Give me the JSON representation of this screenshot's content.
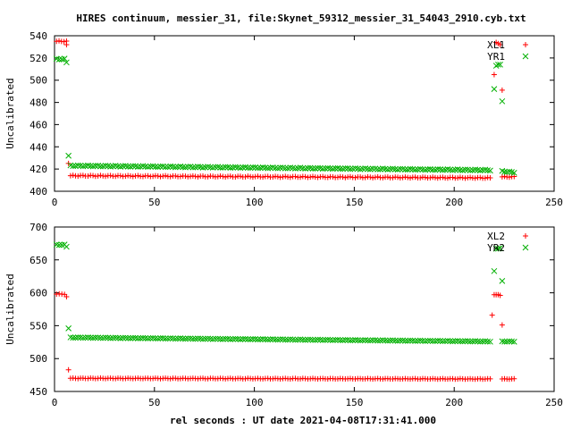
{
  "figure": {
    "title": "HIRES continuum, messier_31, file:Skynet_59312_messier_31_54043_2910.cyb.txt",
    "xlabel": "rel seconds : UT date 2021-04-08T17:31:41.000"
  },
  "colors": {
    "red": "#ff0000",
    "green": "#00b000",
    "axis": "#000000"
  },
  "chart_data": [
    {
      "type": "scatter",
      "xlim": [
        0,
        250
      ],
      "ylim": [
        400,
        540
      ],
      "xticks": [
        0,
        50,
        100,
        150,
        200,
        250
      ],
      "yticks": [
        400,
        420,
        440,
        460,
        480,
        500,
        520,
        540
      ],
      "ylabel": "Uncalibrated",
      "xlabel": "",
      "legend_position": "top-right",
      "grid": false,
      "series": [
        {
          "name": "XL1",
          "marker": "plus",
          "color": "#ff0000",
          "segments": [
            {
              "x": [
                1,
                6
              ],
              "y_start": 535,
              "y_end": 535
            },
            {
              "x": [
                8,
                218
              ],
              "y_start": 414,
              "y_end": 412
            },
            {
              "x": [
                224,
                230
              ],
              "y_start": 413,
              "y_end": 413
            }
          ],
          "points": [
            {
              "x": 6,
              "y": 532
            },
            {
              "x": 7,
              "y": 425
            },
            {
              "x": 220,
              "y": 505
            },
            {
              "x": 221,
              "y": 534
            },
            {
              "x": 222,
              "y": 533
            },
            {
              "x": 223,
              "y": 532
            },
            {
              "x": 224,
              "y": 491
            }
          ]
        },
        {
          "name": "YR1",
          "marker": "x",
          "color": "#00b000",
          "segments": [
            {
              "x": [
                1,
                5
              ],
              "y_start": 519,
              "y_end": 519
            },
            {
              "x": [
                8,
                218
              ],
              "y_start": 423,
              "y_end": 419
            },
            {
              "x": [
                224,
                230
              ],
              "y_start": 418,
              "y_end": 417
            }
          ],
          "points": [
            {
              "x": 6,
              "y": 516
            },
            {
              "x": 7,
              "y": 432
            },
            {
              "x": 220,
              "y": 492
            },
            {
              "x": 221,
              "y": 513
            },
            {
              "x": 222,
              "y": 514
            },
            {
              "x": 223,
              "y": 514
            },
            {
              "x": 224,
              "y": 481
            }
          ]
        }
      ]
    },
    {
      "type": "scatter",
      "xlim": [
        0,
        250
      ],
      "ylim": [
        450,
        700
      ],
      "xticks": [
        0,
        50,
        100,
        150,
        200,
        250
      ],
      "yticks": [
        450,
        500,
        550,
        600,
        650,
        700
      ],
      "ylabel": "Uncalibrated",
      "xlabel": "rel seconds : UT date 2021-04-08T17:31:41.000",
      "legend_position": "top-right",
      "grid": false,
      "series": [
        {
          "name": "XL2",
          "marker": "plus",
          "color": "#ff0000",
          "segments": [
            {
              "x": [
                1,
                5
              ],
              "y_start": 598,
              "y_end": 598
            },
            {
              "x": [
                8,
                218
              ],
              "y_start": 470,
              "y_end": 469
            },
            {
              "x": [
                224,
                230
              ],
              "y_start": 469,
              "y_end": 469
            }
          ],
          "points": [
            {
              "x": 6,
              "y": 594
            },
            {
              "x": 7,
              "y": 483
            },
            {
              "x": 219,
              "y": 566
            },
            {
              "x": 220,
              "y": 597
            },
            {
              "x": 221,
              "y": 597
            },
            {
              "x": 222,
              "y": 597
            },
            {
              "x": 223,
              "y": 596
            },
            {
              "x": 224,
              "y": 551
            }
          ]
        },
        {
          "name": "YR2",
          "marker": "x",
          "color": "#00b000",
          "segments": [
            {
              "x": [
                1,
                5
              ],
              "y_start": 673,
              "y_end": 673
            },
            {
              "x": [
                8,
                218
              ],
              "y_start": 532,
              "y_end": 526
            },
            {
              "x": [
                224,
                230
              ],
              "y_start": 526,
              "y_end": 526
            }
          ],
          "points": [
            {
              "x": 6,
              "y": 670
            },
            {
              "x": 7,
              "y": 546
            },
            {
              "x": 220,
              "y": 633
            },
            {
              "x": 221,
              "y": 667
            },
            {
              "x": 222,
              "y": 667
            },
            {
              "x": 223,
              "y": 668
            },
            {
              "x": 224,
              "y": 618
            }
          ]
        }
      ]
    }
  ]
}
